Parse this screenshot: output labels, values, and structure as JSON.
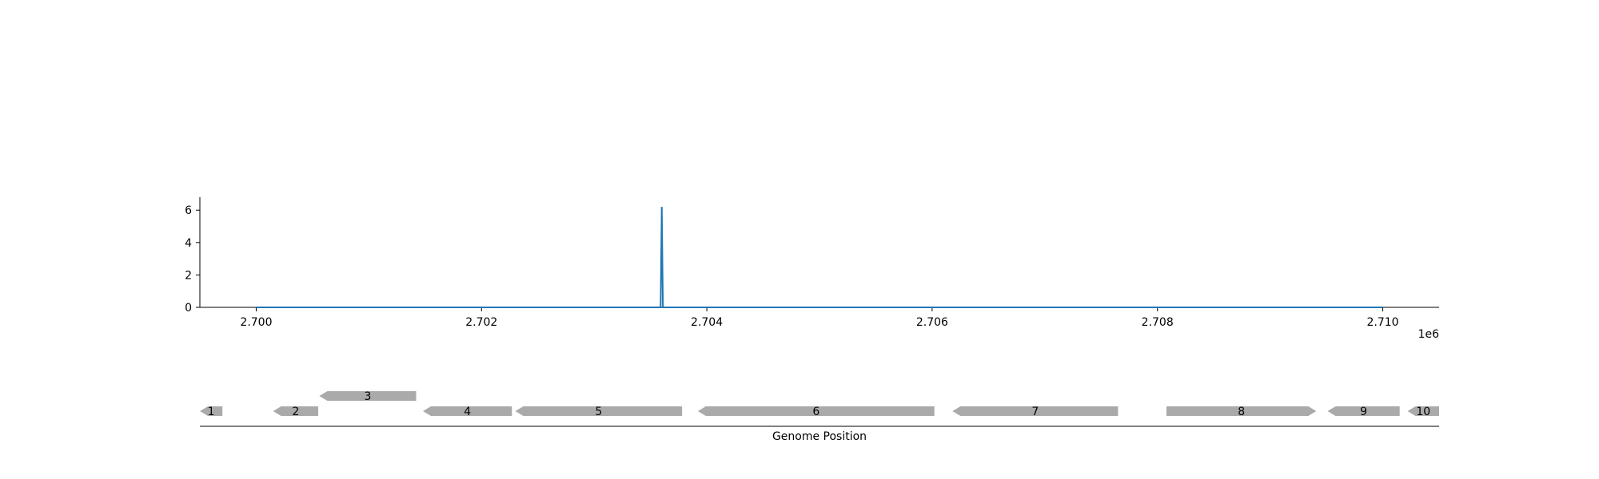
{
  "chart_data": [
    {
      "type": "line",
      "xlabel": "",
      "ylabel": "",
      "x_offset_label": "1e6",
      "xlim": [
        2699500,
        2710500
      ],
      "ylim": [
        0,
        6.8
      ],
      "x_ticks": [
        2700000,
        2702000,
        2704000,
        2706000,
        2708000,
        2710000
      ],
      "x_tick_labels": [
        "2.700",
        "2.702",
        "2.704",
        "2.706",
        "2.708",
        "2.710"
      ],
      "y_ticks": [
        0,
        2,
        4,
        6
      ],
      "y_tick_labels": [
        "0",
        "2",
        "4",
        "6"
      ],
      "grid": false,
      "series": [
        {
          "color": "#1f77b4",
          "x": [
            2700000,
            2703590,
            2703600,
            2703610,
            2710000
          ],
          "y": [
            0,
            0,
            6.2,
            0,
            0
          ]
        }
      ]
    },
    {
      "type": "gene_track",
      "xlabel": "Genome Position",
      "xlim": [
        2699500,
        2710500
      ],
      "gene_color": "#aaaaaa",
      "genes": [
        {
          "label": "1",
          "start": 2699500,
          "end": 2699700,
          "strand": "-",
          "row": 0
        },
        {
          "label": "2",
          "start": 2700150,
          "end": 2700550,
          "strand": "-",
          "row": 0
        },
        {
          "label": "3",
          "start": 2700560,
          "end": 2701420,
          "strand": "-",
          "row": 1
        },
        {
          "label": "4",
          "start": 2701480,
          "end": 2702270,
          "strand": "-",
          "row": 0
        },
        {
          "label": "5",
          "start": 2702300,
          "end": 2703780,
          "strand": "-",
          "row": 0
        },
        {
          "label": "6",
          "start": 2703920,
          "end": 2706020,
          "strand": "-",
          "row": 0
        },
        {
          "label": "7",
          "start": 2706180,
          "end": 2707650,
          "strand": "-",
          "row": 0
        },
        {
          "label": "8",
          "start": 2708080,
          "end": 2709410,
          "strand": "+",
          "row": 0
        },
        {
          "label": "9",
          "start": 2709510,
          "end": 2710150,
          "strand": "-",
          "row": 0
        },
        {
          "label": "10",
          "start": 2710220,
          "end": 2710500,
          "strand": "-",
          "row": 0
        }
      ]
    }
  ]
}
